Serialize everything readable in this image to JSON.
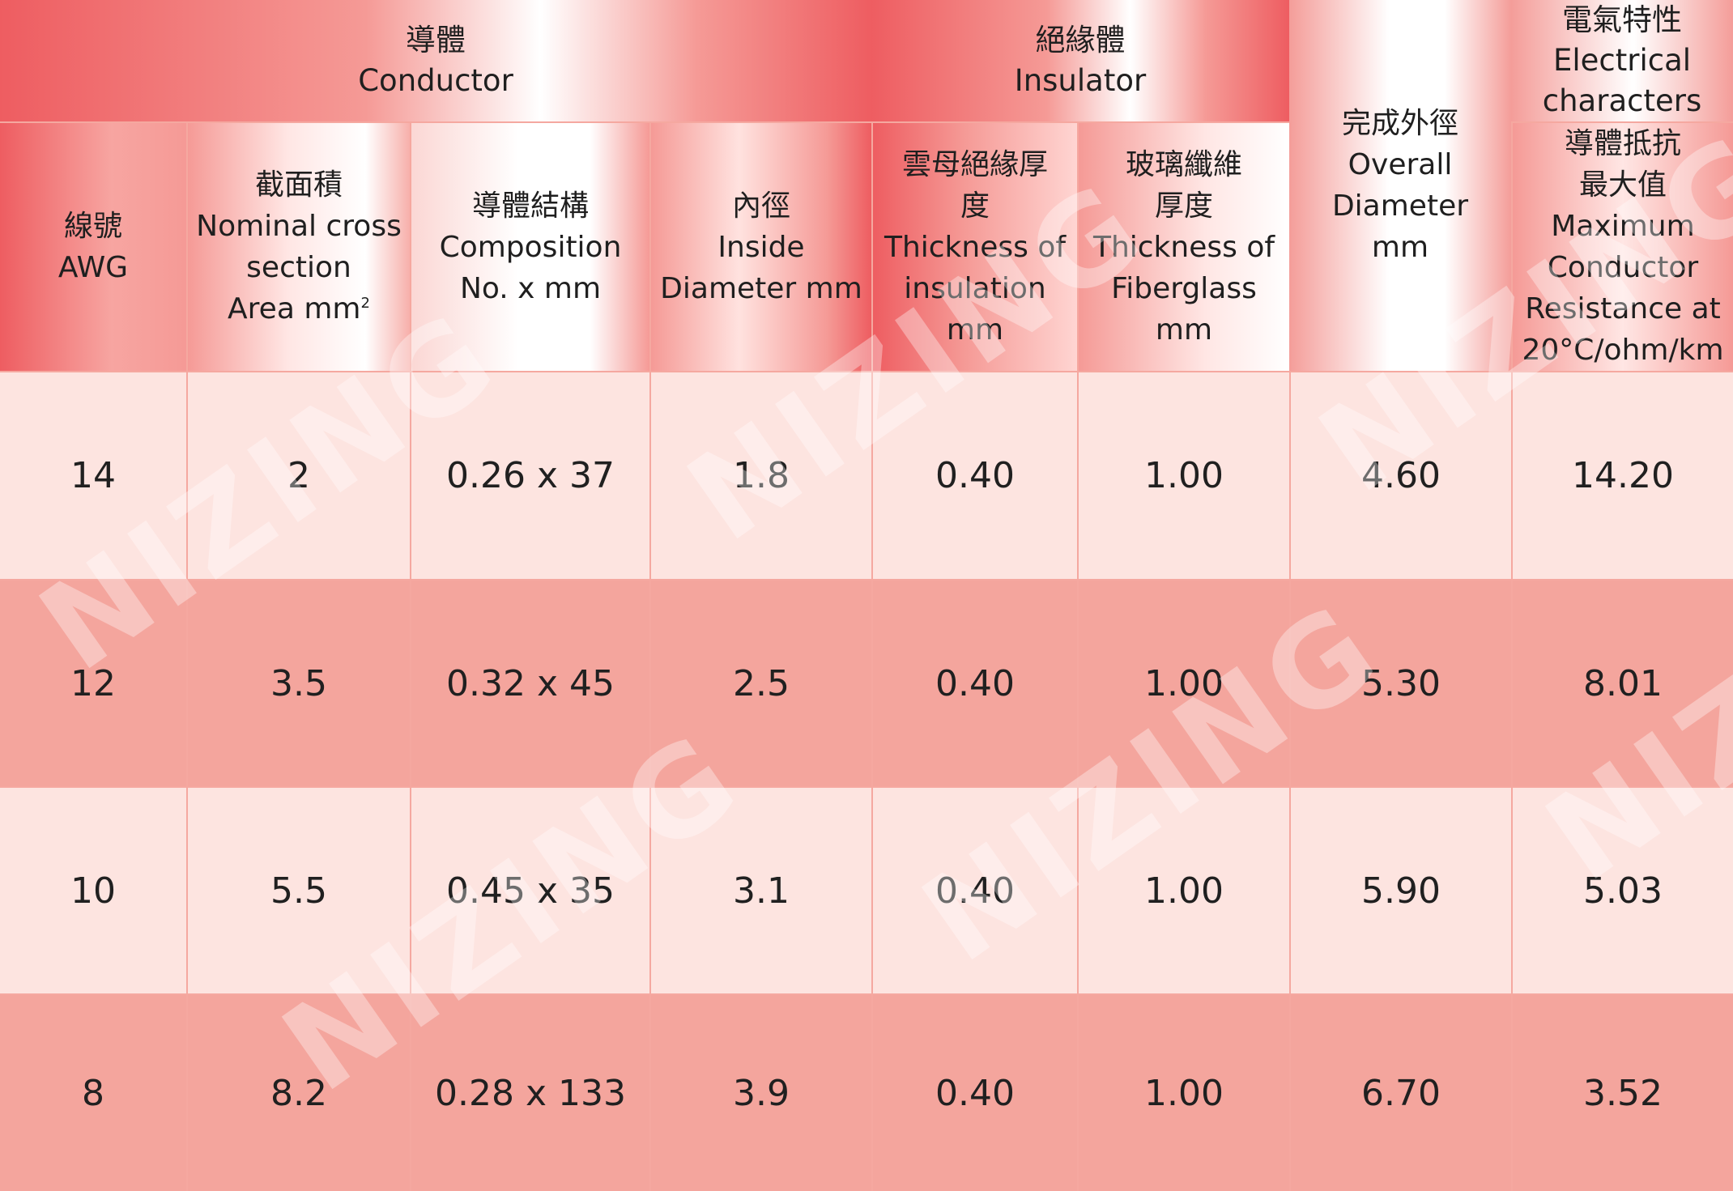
{
  "group_headers": {
    "conductor": [
      "導體",
      "Conductor"
    ],
    "insulator": [
      "絕緣體",
      "Insulator"
    ],
    "electrical": [
      "電氣特性",
      "Electrical",
      "characters"
    ]
  },
  "column_headers": {
    "awg": [
      "線號",
      "AWG"
    ],
    "cross_section": [
      "截面積",
      "Nominal cross",
      "section"
    ],
    "cross_section_unit": "Area mm",
    "cross_section_sup": "2",
    "composition": [
      "導體結構",
      "Composition",
      "No. x mm"
    ],
    "inside_diameter": [
      "內徑",
      "Inside",
      "Diameter mm"
    ],
    "mica_thickness": [
      "雲母絕緣厚",
      "度",
      "Thickness of",
      "insulation",
      "mm"
    ],
    "fiberglass_thickness": [
      "玻璃纖維",
      "厚度",
      "Thickness of",
      "Fiberglass",
      "mm"
    ],
    "overall_diameter": [
      "完成外徑",
      "Overall",
      "Diameter",
      "mm"
    ],
    "resistance": [
      "導體抵抗",
      "最大值",
      "Maximum",
      "Conductor",
      "Resistance at",
      "20°C/ohm/km"
    ]
  },
  "rows": [
    [
      "14",
      "2",
      "0.26 x 37",
      "1.8",
      "0.40",
      "1.00",
      "4.60",
      "14.20"
    ],
    [
      "12",
      "3.5",
      "0.32 x 45",
      "2.5",
      "0.40",
      "1.00",
      "5.30",
      "8.01"
    ],
    [
      "10",
      "5.5",
      "0.45 x 35",
      "3.1",
      "0.40",
      "1.00",
      "5.90",
      "5.03"
    ],
    [
      "8",
      "8.2",
      "0.28 x 133",
      "3.9",
      "0.40",
      "1.00",
      "6.70",
      "3.52"
    ]
  ],
  "watermark": "NIZING",
  "colors": {
    "header_red": "#ee5d61",
    "row_light": "#fde4e0",
    "row_dark": "#f4a59d"
  }
}
